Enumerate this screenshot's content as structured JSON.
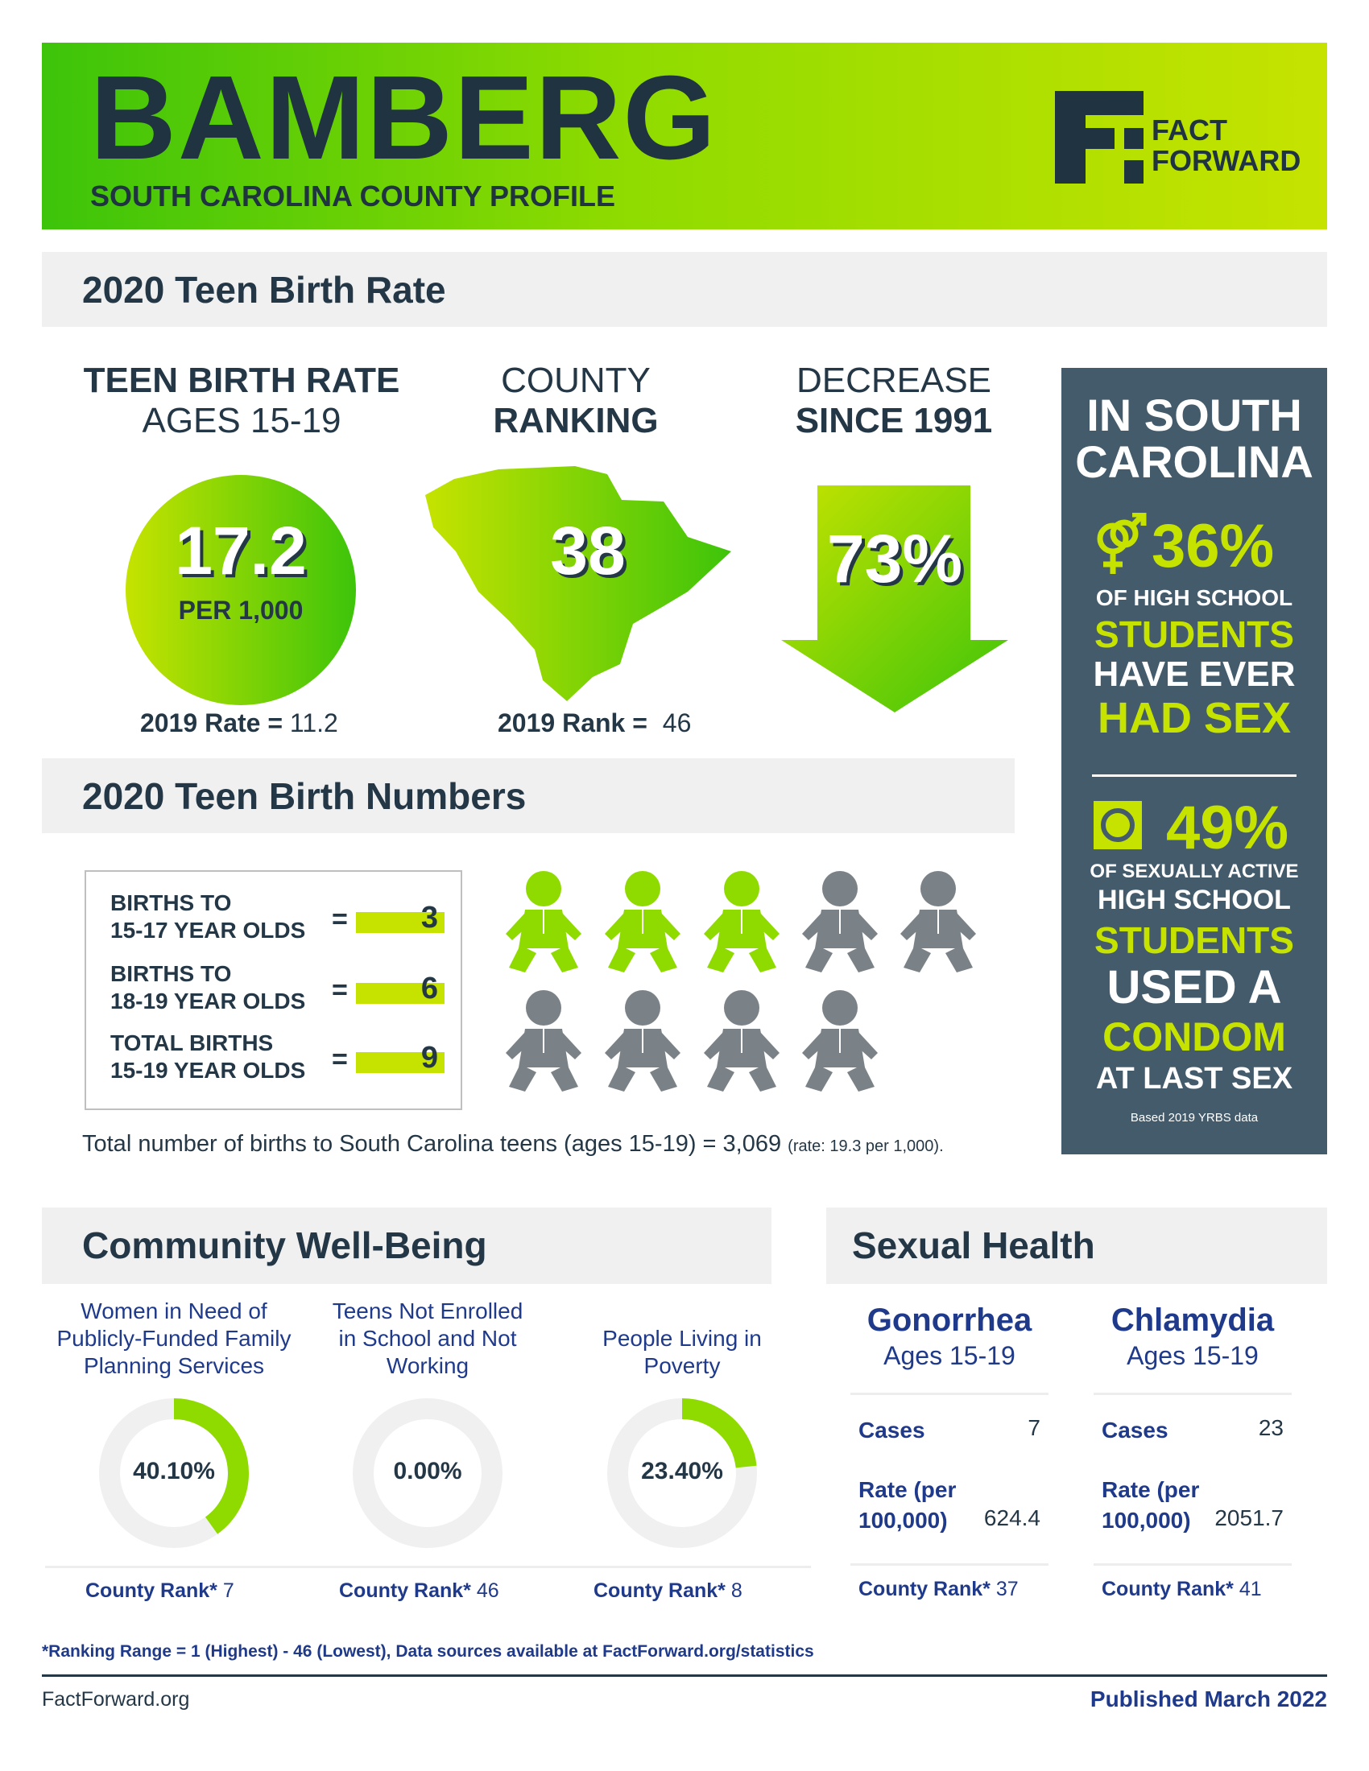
{
  "header": {
    "county": "BAMBERG",
    "subtitle": "SOUTH CAROLINA COUNTY PROFILE",
    "logo_line1": "FACT",
    "logo_line2": "FORWARD"
  },
  "birth_rate_section": {
    "title": "2020 Teen Birth Rate",
    "rate": {
      "head_line1": "TEEN BIRTH RATE",
      "head_line2": "AGES 15-19",
      "value": "17.2",
      "unit": "PER 1,000",
      "prev_label": "2019 Rate =",
      "prev_value": "11.2"
    },
    "ranking": {
      "head_line1": "COUNTY",
      "head_line2": "RANKING",
      "value": "38",
      "prev_label": "2019 Rank =",
      "prev_value": "46"
    },
    "decrease": {
      "head_line1": "DECREASE",
      "head_line2": "SINCE 1991",
      "value": "73%"
    }
  },
  "sc_panel": {
    "title_line1": "IN SOUTH",
    "title_line2": "CAROLINA",
    "stat1": {
      "value": "36%",
      "line1": "OF HIGH SCHOOL",
      "line2": "STUDENTS",
      "line3": "HAVE EVER",
      "line4": "HAD SEX"
    },
    "stat2": {
      "value": "49%",
      "line1": "OF SEXUALLY ACTIVE",
      "line2": "HIGH SCHOOL",
      "line3": "STUDENTS",
      "line4": "USED A",
      "line5": "CONDOM",
      "line6": "AT LAST SEX"
    },
    "note": "Based 2019 YRBS data",
    "icon1": "gender-symbols-icon",
    "icon2": "condom-icon"
  },
  "birth_numbers_section": {
    "title": "2020 Teen Birth Numbers",
    "rows": [
      {
        "line1": "BIRTHS TO",
        "line2": "15-17 YEAR OLDS",
        "value": "3"
      },
      {
        "line1": "BIRTHS TO",
        "line2": "18-19 YEAR OLDS",
        "value": "6"
      },
      {
        "line1": "TOTAL BIRTHS",
        "line2": "15-19 YEAR OLDS",
        "value": "9"
      }
    ],
    "eq": "=",
    "babies_highlighted": 3,
    "babies_total": 9,
    "total_text": "Total number of births to South Carolina teens (ages 15-19) = 3,069",
    "total_rate": "(rate: 19.3 per 1,000)."
  },
  "community_section": {
    "title": "Community Well-Being",
    "items": [
      {
        "label_lines": [
          "Women in Need of",
          "Publicly-Funded Family",
          "Planning Services"
        ],
        "percent": 40.1,
        "percent_label": "40.10%",
        "rank_label": "County Rank*",
        "rank": "7"
      },
      {
        "label_lines": [
          "Teens Not Enrolled",
          "in School and Not",
          "Working"
        ],
        "percent": 0,
        "percent_label": "0.00%",
        "rank_label": "County Rank*",
        "rank": "46"
      },
      {
        "label_lines": [
          "People Living in",
          "Poverty"
        ],
        "percent": 23.4,
        "percent_label": "23.40%",
        "rank_label": "County Rank*",
        "rank": "8"
      }
    ]
  },
  "sexual_health_section": {
    "title": "Sexual Health",
    "items": [
      {
        "name": "Gonorrhea",
        "ages": "Ages 15-19",
        "cases_label": "Cases",
        "cases": "7",
        "rate_label1": "Rate (per",
        "rate_label2": "100,000)",
        "rate": "624.4",
        "rank_label": "County Rank*",
        "rank": "37"
      },
      {
        "name": "Chlamydia",
        "ages": "Ages 15-19",
        "cases_label": "Cases",
        "cases": "23",
        "rate_label1": "Rate (per",
        "rate_label2": "100,000)",
        "rate": "2051.7",
        "rank_label": "County Rank*",
        "rank": "41"
      }
    ]
  },
  "footer": {
    "footnote": "*Ranking Range = 1 (Highest) - 46 (Lowest), Data sources available at FactForward.org/statistics",
    "site": "FactForward.org",
    "published": "Published March 2022"
  },
  "colors": {
    "navy": "#243746",
    "lime": "#c6e300",
    "green": "#3dc40a",
    "slate": "#445b6b",
    "baby_gray": "#7a8288",
    "blue_text": "#1f3a8a"
  }
}
